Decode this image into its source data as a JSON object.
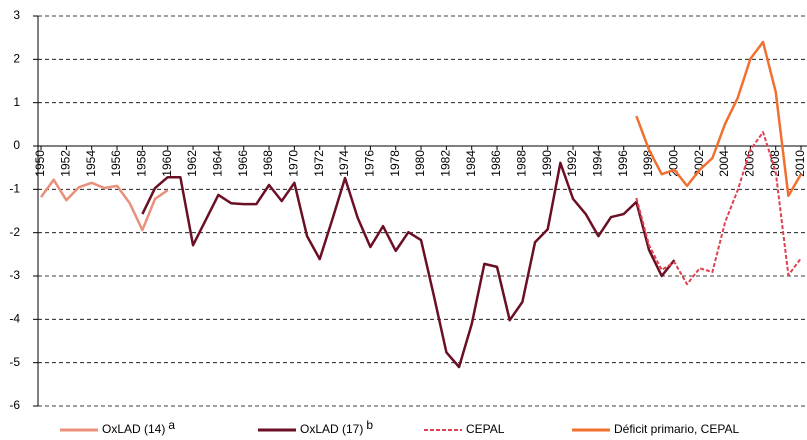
{
  "chart_data": {
    "type": "line",
    "xlim": [
      1949.76,
      2010.47
    ],
    "xticks": [
      1950,
      1952,
      1954,
      1956,
      1958,
      1960,
      1962,
      1964,
      1966,
      1968,
      1970,
      1972,
      1974,
      1976,
      1978,
      1980,
      1982,
      1984,
      1986,
      1988,
      1990,
      1992,
      1994,
      1996,
      1998,
      2000,
      2002,
      2004,
      2006,
      2008,
      2010
    ],
    "ylim": [
      -6,
      3
    ],
    "yticks": [
      -6,
      -5,
      -4,
      -3,
      -2,
      -1,
      0,
      1,
      2,
      3
    ],
    "grid": true,
    "legend": "bottom",
    "series": [
      {
        "name": "OxLAD (14)",
        "superscript": "a",
        "color": "#e8907a",
        "dash": false,
        "x": [
          1950,
          1951,
          1952,
          1953,
          1954,
          1955,
          1956,
          1957,
          1958,
          1959,
          1960
        ],
        "values": [
          -1.18,
          -0.78,
          -1.25,
          -0.95,
          -0.85,
          -0.97,
          -0.92,
          -1.32,
          -1.94,
          -1.22,
          -1.02
        ]
      },
      {
        "name": "OxLAD (17)",
        "superscript": "b",
        "color": "#6b0f24",
        "dash": false,
        "x": [
          1958,
          1959,
          1960,
          1961,
          1962,
          1963,
          1964,
          1965,
          1966,
          1967,
          1968,
          1969,
          1970,
          1971,
          1972,
          1973,
          1974,
          1975,
          1976,
          1977,
          1978,
          1979,
          1980,
          1981,
          1982,
          1983,
          1984,
          1985,
          1986,
          1987,
          1988,
          1989,
          1990,
          1991,
          1992,
          1993,
          1994,
          1995,
          1996,
          1997,
          1998,
          1999,
          2000
        ],
        "values": [
          -1.57,
          -0.97,
          -0.72,
          -0.72,
          -2.29,
          -1.71,
          -1.13,
          -1.32,
          -1.34,
          -1.34,
          -0.9,
          -1.27,
          -0.85,
          -2.08,
          -2.61,
          -1.69,
          -0.74,
          -1.66,
          -2.33,
          -1.85,
          -2.42,
          -1.99,
          -2.17,
          -3.44,
          -4.76,
          -5.1,
          -4.11,
          -2.72,
          -2.79,
          -4.02,
          -3.6,
          -2.22,
          -1.92,
          -0.39,
          -1.22,
          -1.57,
          -2.08,
          -1.64,
          -1.57,
          -1.29,
          -2.4,
          -3.0,
          -2.63
        ]
      },
      {
        "name": "CEPAL",
        "color": "#e0404f",
        "dash": true,
        "x": [
          1997,
          1998,
          1999,
          2000,
          2001,
          2002,
          2003,
          2004,
          2005,
          2006,
          2007,
          2008,
          2009,
          2010
        ],
        "values": [
          -1.2,
          -2.29,
          -2.86,
          -2.68,
          -3.19,
          -2.82,
          -2.91,
          -1.76,
          -1.02,
          -0.09,
          0.32,
          -0.6,
          -2.98,
          -2.59
        ]
      },
      {
        "name": "Déficit primario, CEPAL",
        "color": "#f07030",
        "dash": false,
        "x": [
          1997,
          1998,
          1999,
          2000,
          2001,
          2002,
          2003,
          2004,
          2005,
          2006,
          2007,
          2008,
          2009,
          2010
        ],
        "values": [
          0.69,
          -0.09,
          -0.65,
          -0.55,
          -0.92,
          -0.55,
          -0.28,
          0.51,
          1.11,
          2.01,
          2.4,
          1.25,
          -1.15,
          -0.65
        ]
      }
    ]
  }
}
